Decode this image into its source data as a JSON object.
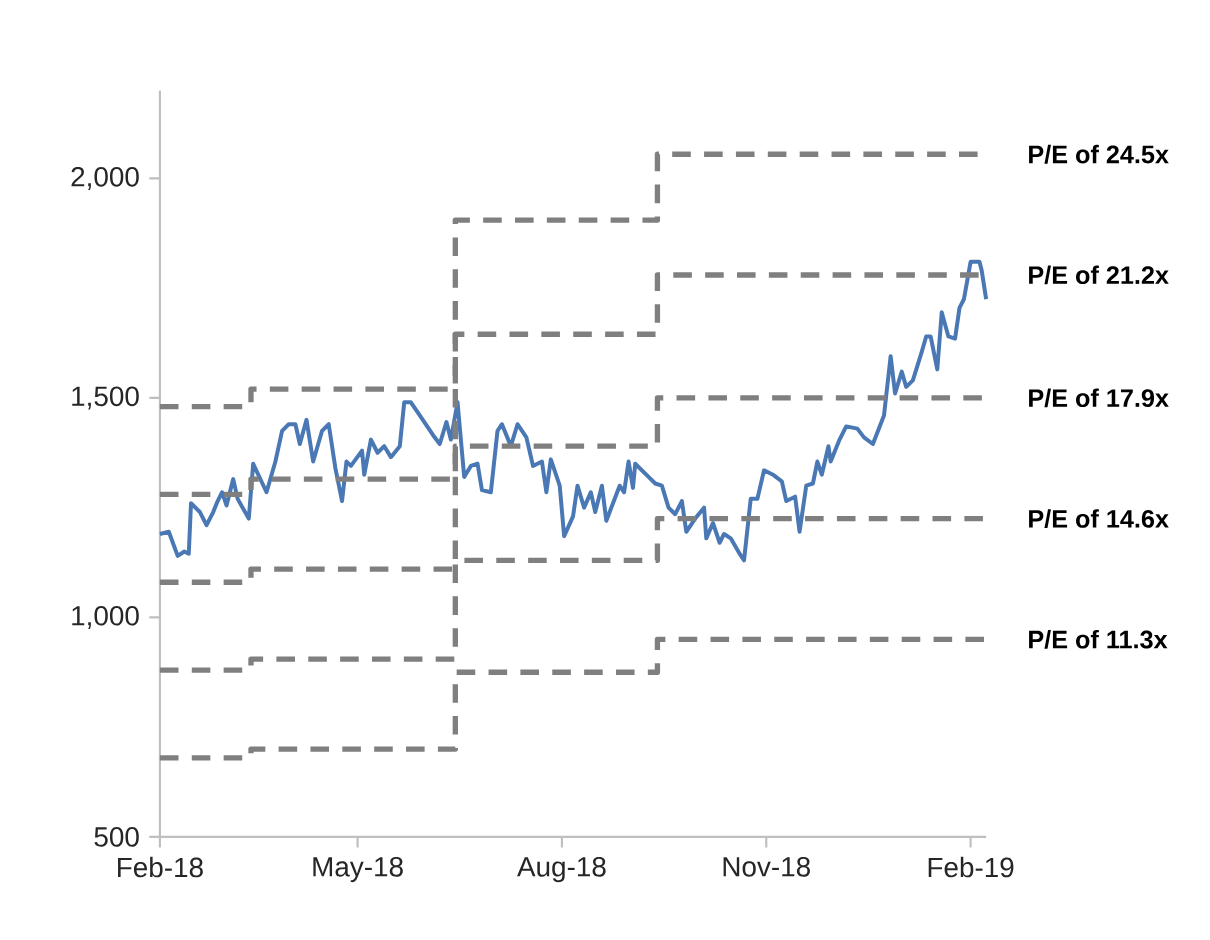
{
  "chart_data": {
    "type": "line",
    "xlim": [
      "2018-02-01",
      "2019-02-08"
    ],
    "xticks": [
      {
        "value": "2018-02-01",
        "label": "Feb-18"
      },
      {
        "value": "2018-05-01",
        "label": "May-18"
      },
      {
        "value": "2018-08-01",
        "label": "Aug-18"
      },
      {
        "value": "2018-11-01",
        "label": "Nov-18"
      },
      {
        "value": "2019-02-01",
        "label": "Feb-19"
      }
    ],
    "ylim": [
      500,
      2200
    ],
    "yticks": [
      {
        "value": 500,
        "label": "500"
      },
      {
        "value": 1000,
        "label": "1,000"
      },
      {
        "value": 1500,
        "label": "1,500"
      },
      {
        "value": 2000,
        "label": "2,000"
      }
    ],
    "grid": false,
    "legend": false,
    "series": [
      {
        "color": "#4a78b4",
        "line_style": "solid",
        "x": [
          "2018-02-01",
          "2018-02-05",
          "2018-02-09",
          "2018-02-12",
          "2018-02-14",
          "2018-02-15",
          "2018-02-19",
          "2018-02-22",
          "2018-02-25",
          "2018-02-27",
          "2018-03-01",
          "2018-03-03",
          "2018-03-06",
          "2018-03-08",
          "2018-03-13",
          "2018-03-15",
          "2018-03-21",
          "2018-03-25",
          "2018-03-28",
          "2018-03-31",
          "2018-04-03",
          "2018-04-05",
          "2018-04-08",
          "2018-04-11",
          "2018-04-15",
          "2018-04-18",
          "2018-04-21",
          "2018-04-24",
          "2018-04-26",
          "2018-04-28",
          "2018-05-03",
          "2018-05-04",
          "2018-05-07",
          "2018-05-10",
          "2018-05-13",
          "2018-05-16",
          "2018-05-20",
          "2018-05-22",
          "2018-05-25",
          "2018-05-29",
          "2018-06-04",
          "2018-06-07",
          "2018-06-10",
          "2018-06-12",
          "2018-06-15",
          "2018-06-18",
          "2018-06-21",
          "2018-06-24",
          "2018-06-26",
          "2018-06-30",
          "2018-07-03",
          "2018-07-05",
          "2018-07-09",
          "2018-07-12",
          "2018-07-16",
          "2018-07-19",
          "2018-07-23",
          "2018-07-25",
          "2018-07-27",
          "2018-07-31",
          "2018-08-02",
          "2018-08-06",
          "2018-08-08",
          "2018-08-11",
          "2018-08-14",
          "2018-08-16",
          "2018-08-19",
          "2018-08-21",
          "2018-08-27",
          "2018-08-29",
          "2018-08-31",
          "2018-09-02",
          "2018-09-03",
          "2018-09-09",
          "2018-09-12",
          "2018-09-15",
          "2018-09-18",
          "2018-09-21",
          "2018-09-24",
          "2018-09-26",
          "2018-09-30",
          "2018-10-04",
          "2018-10-05",
          "2018-10-08",
          "2018-10-11",
          "2018-10-13",
          "2018-10-16",
          "2018-10-20",
          "2018-10-22",
          "2018-10-25",
          "2018-10-28",
          "2018-10-31",
          "2018-11-04",
          "2018-11-08",
          "2018-11-10",
          "2018-11-14",
          "2018-11-16",
          "2018-11-19",
          "2018-11-22",
          "2018-11-24",
          "2018-11-26",
          "2018-11-29",
          "2018-11-30",
          "2018-12-04",
          "2018-12-07",
          "2018-12-12",
          "2018-12-15",
          "2018-12-19",
          "2018-12-24",
          "2018-12-27",
          "2018-12-29",
          "2019-01-01",
          "2019-01-03",
          "2019-01-06",
          "2019-01-10",
          "2019-01-12",
          "2019-01-14",
          "2019-01-17",
          "2019-01-19",
          "2019-01-22",
          "2019-01-25",
          "2019-01-27",
          "2019-01-29",
          "2019-02-01",
          "2019-02-05",
          "2019-02-06",
          "2019-02-08"
        ],
        "values": [
          1190,
          1195,
          1140,
          1150,
          1145,
          1260,
          1240,
          1210,
          1240,
          1265,
          1285,
          1255,
          1315,
          1270,
          1225,
          1350,
          1285,
          1355,
          1425,
          1440,
          1440,
          1395,
          1450,
          1355,
          1425,
          1440,
          1340,
          1265,
          1355,
          1345,
          1380,
          1325,
          1405,
          1375,
          1390,
          1365,
          1390,
          1490,
          1490,
          1460,
          1415,
          1395,
          1445,
          1405,
          1490,
          1320,
          1345,
          1350,
          1290,
          1285,
          1425,
          1440,
          1390,
          1440,
          1410,
          1345,
          1355,
          1285,
          1360,
          1300,
          1185,
          1230,
          1300,
          1250,
          1285,
          1240,
          1300,
          1220,
          1300,
          1285,
          1355,
          1295,
          1350,
          1320,
          1305,
          1300,
          1250,
          1235,
          1265,
          1195,
          1225,
          1250,
          1180,
          1215,
          1170,
          1190,
          1180,
          1145,
          1130,
          1270,
          1270,
          1335,
          1325,
          1310,
          1265,
          1275,
          1195,
          1300,
          1305,
          1355,
          1325,
          1390,
          1355,
          1405,
          1435,
          1430,
          1410,
          1395,
          1460,
          1595,
          1510,
          1560,
          1525,
          1540,
          1605,
          1640,
          1640,
          1565,
          1695,
          1640,
          1635,
          1705,
          1725,
          1810,
          1810,
          1790,
          1725
        ]
      },
      {
        "type": "step",
        "name": "P/E of 24.5x",
        "color": "#7f7f7f",
        "line_style": "dashed",
        "x": [
          "2018-02-01",
          "2018-03-14",
          "2018-06-14",
          "2018-09-13",
          "2019-02-08"
        ],
        "values": [
          1480,
          1520,
          1905,
          2055,
          2055
        ]
      },
      {
        "type": "step",
        "name": "P/E of 21.2x",
        "color": "#7f7f7f",
        "line_style": "dashed",
        "x": [
          "2018-02-01",
          "2018-03-14",
          "2018-06-14",
          "2018-09-13",
          "2019-02-08"
        ],
        "values": [
          1280,
          1315,
          1645,
          1780,
          1780
        ]
      },
      {
        "type": "step",
        "name": "P/E of 17.9x",
        "color": "#7f7f7f",
        "line_style": "dashed",
        "x": [
          "2018-02-01",
          "2018-03-14",
          "2018-06-14",
          "2018-09-13",
          "2019-02-08"
        ],
        "values": [
          1080,
          1110,
          1390,
          1500,
          1500
        ]
      },
      {
        "type": "step",
        "name": "P/E of 14.6x",
        "color": "#7f7f7f",
        "line_style": "dashed",
        "x": [
          "2018-02-01",
          "2018-03-14",
          "2018-06-14",
          "2018-09-13",
          "2019-02-08"
        ],
        "values": [
          880,
          905,
          1130,
          1225,
          1225
        ]
      },
      {
        "type": "step",
        "name": "P/E of 11.3x",
        "color": "#7f7f7f",
        "line_style": "dashed",
        "x": [
          "2018-02-01",
          "2018-03-14",
          "2018-06-14",
          "2018-09-13",
          "2019-02-08"
        ],
        "values": [
          680,
          700,
          875,
          950,
          950
        ]
      }
    ]
  }
}
